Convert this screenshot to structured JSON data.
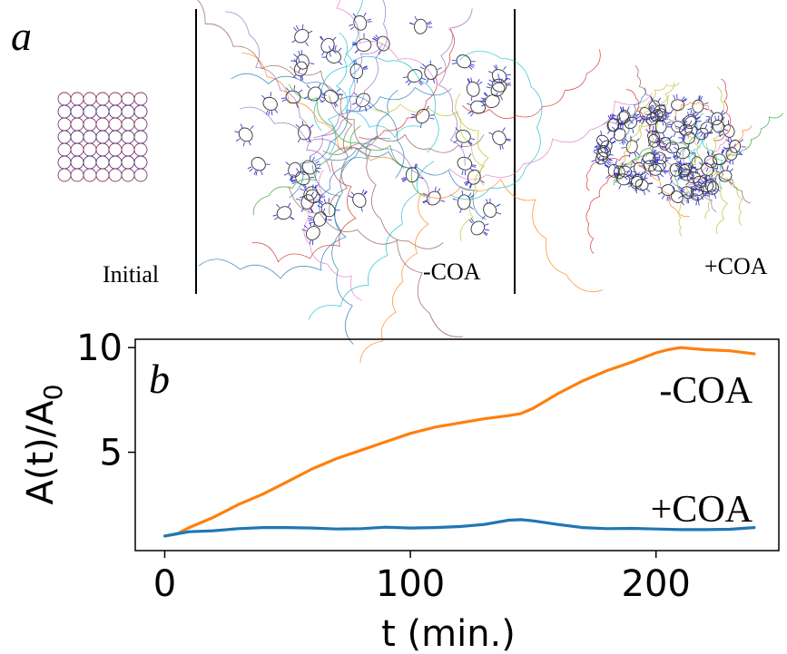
{
  "panel_a": {
    "letter": "a",
    "panels": [
      {
        "label": "Initial"
      },
      {
        "label": "-COA"
      },
      {
        "label": "+COA"
      }
    ]
  },
  "chart_data": {
    "type": "line",
    "panel_letter": "b",
    "xlabel": "t (min.)",
    "ylabel": "A(t)/A",
    "ylabel_subscript": "0",
    "xlim": [
      -12,
      250
    ],
    "ylim": [
      0.3,
      10.4
    ],
    "xticks": [
      0,
      100,
      200
    ],
    "yticks": [
      5,
      10
    ],
    "grid": false,
    "series": [
      {
        "name": "-COA",
        "color": "#ff7f0e",
        "x": [
          0,
          5,
          10,
          20,
          30,
          40,
          50,
          60,
          70,
          80,
          90,
          100,
          110,
          120,
          130,
          140,
          145,
          150,
          160,
          170,
          180,
          190,
          200,
          205,
          210,
          215,
          220,
          230,
          240
        ],
        "y": [
          1.0,
          1.1,
          1.4,
          1.9,
          2.5,
          3.0,
          3.6,
          4.2,
          4.7,
          5.1,
          5.5,
          5.9,
          6.2,
          6.4,
          6.6,
          6.75,
          6.85,
          7.1,
          7.8,
          8.4,
          8.9,
          9.3,
          9.75,
          9.9,
          10.0,
          9.95,
          9.9,
          9.85,
          9.7
        ]
      },
      {
        "name": "+COA",
        "color": "#1f77b4",
        "x": [
          0,
          5,
          10,
          20,
          30,
          40,
          50,
          60,
          70,
          80,
          90,
          100,
          110,
          120,
          130,
          140,
          145,
          150,
          160,
          170,
          180,
          190,
          200,
          210,
          220,
          230,
          240
        ],
        "y": [
          1.0,
          1.1,
          1.2,
          1.25,
          1.35,
          1.4,
          1.4,
          1.38,
          1.33,
          1.35,
          1.42,
          1.38,
          1.4,
          1.45,
          1.55,
          1.75,
          1.78,
          1.72,
          1.55,
          1.4,
          1.35,
          1.36,
          1.33,
          1.3,
          1.3,
          1.32,
          1.4
        ]
      }
    ]
  }
}
